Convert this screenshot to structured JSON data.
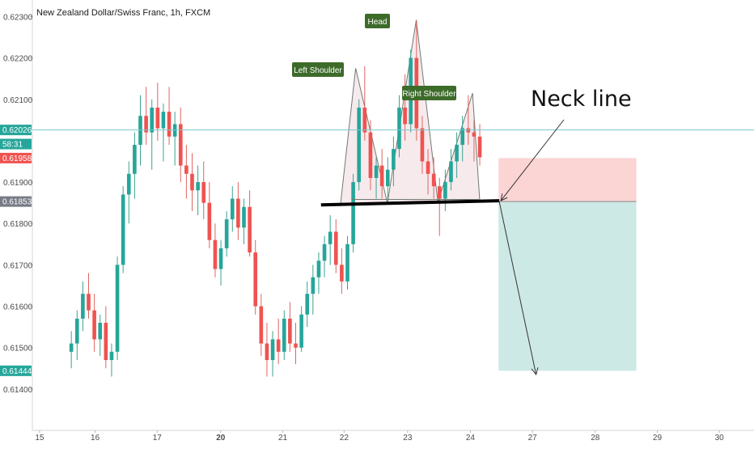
{
  "header": {
    "title": "New Zealand Dollar/Swiss Franc, 1h, FXCM"
  },
  "annotations": {
    "head": "Head",
    "left_shoulder": "Left Shoulder",
    "right_shoulder": "Right Shoulder",
    "neck_line": "Neck line"
  },
  "price_badges": [
    {
      "text": "0.62026",
      "value": 0.62026,
      "color": "#26a69a"
    },
    {
      "text": "58:31",
      "value": 0.61992,
      "color": "#26a69a"
    },
    {
      "text": "0.61958",
      "value": 0.61958,
      "color": "#ef5350"
    },
    {
      "text": "0.61853",
      "value": 0.61853,
      "color": "#787b86"
    },
    {
      "text": "0.61444",
      "value": 0.61444,
      "color": "#26a69a"
    }
  ],
  "chart_data": {
    "type": "candlestick",
    "y_ticks": [
      "0.62300",
      "0.62200",
      "0.62100",
      "0.61900",
      "0.61800",
      "0.61700",
      "0.61600",
      "0.61500",
      "0.61400"
    ],
    "x_ticks": [
      "15",
      "16",
      "17",
      "20",
      "21",
      "22",
      "23",
      "24",
      "27",
      "28",
      "29",
      "30"
    ],
    "x_range": [
      0,
      100
    ],
    "y_range": [
      0.613,
      0.6234
    ],
    "grid": false,
    "colors": {
      "up": "#26a69a",
      "down": "#ef5350",
      "wick_up": "#3aa390",
      "wick_down": "#e0645f"
    },
    "candles": [
      [
        0.6149,
        0.6154,
        0.6145,
        0.6151
      ],
      [
        0.6151,
        0.6159,
        0.6147,
        0.6157
      ],
      [
        0.6157,
        0.6166,
        0.6154,
        0.6163
      ],
      [
        0.6163,
        0.6168,
        0.6157,
        0.6159
      ],
      [
        0.6159,
        0.6163,
        0.6149,
        0.6152
      ],
      [
        0.6152,
        0.6158,
        0.6148,
        0.6156
      ],
      [
        0.6156,
        0.616,
        0.6145,
        0.6147
      ],
      [
        0.6147,
        0.6151,
        0.6143,
        0.6149
      ],
      [
        0.6149,
        0.6172,
        0.6147,
        0.617
      ],
      [
        0.617,
        0.6189,
        0.6168,
        0.6187
      ],
      [
        0.6187,
        0.6195,
        0.618,
        0.6192
      ],
      [
        0.6192,
        0.6202,
        0.6186,
        0.6199
      ],
      [
        0.6199,
        0.6211,
        0.6194,
        0.6206
      ],
      [
        0.6206,
        0.6213,
        0.6199,
        0.6202
      ],
      [
        0.6202,
        0.621,
        0.6193,
        0.6208
      ],
      [
        0.6208,
        0.6214,
        0.62,
        0.6203
      ],
      [
        0.6203,
        0.6209,
        0.6195,
        0.6207
      ],
      [
        0.6207,
        0.6213,
        0.6199,
        0.6201
      ],
      [
        0.6201,
        0.6207,
        0.6194,
        0.6204
      ],
      [
        0.6204,
        0.6208,
        0.619,
        0.6194
      ],
      [
        0.6194,
        0.6199,
        0.6186,
        0.6192
      ],
      [
        0.6192,
        0.6197,
        0.6183,
        0.6188
      ],
      [
        0.6188,
        0.6194,
        0.6182,
        0.619
      ],
      [
        0.619,
        0.6195,
        0.6181,
        0.6185
      ],
      [
        0.6185,
        0.619,
        0.6174,
        0.6176
      ],
      [
        0.6176,
        0.618,
        0.6167,
        0.6169
      ],
      [
        0.6169,
        0.6176,
        0.6165,
        0.6174
      ],
      [
        0.6174,
        0.6183,
        0.6172,
        0.6181
      ],
      [
        0.6181,
        0.6189,
        0.6178,
        0.6186
      ],
      [
        0.6186,
        0.619,
        0.6176,
        0.6179
      ],
      [
        0.6179,
        0.6186,
        0.6175,
        0.6184
      ],
      [
        0.6184,
        0.6188,
        0.6172,
        0.6173
      ],
      [
        0.6173,
        0.6176,
        0.6158,
        0.616
      ],
      [
        0.616,
        0.6163,
        0.6148,
        0.6151
      ],
      [
        0.6151,
        0.6156,
        0.6143,
        0.6147
      ],
      [
        0.6147,
        0.6154,
        0.6143,
        0.6152
      ],
      [
        0.6152,
        0.6157,
        0.6146,
        0.6149
      ],
      [
        0.6149,
        0.6159,
        0.6147,
        0.6157
      ],
      [
        0.6157,
        0.6161,
        0.6149,
        0.6151
      ],
      [
        0.6151,
        0.6156,
        0.6146,
        0.615
      ],
      [
        0.615,
        0.616,
        0.6149,
        0.6158
      ],
      [
        0.6158,
        0.6166,
        0.6155,
        0.6163
      ],
      [
        0.6163,
        0.617,
        0.6158,
        0.6167
      ],
      [
        0.6167,
        0.6173,
        0.6163,
        0.6171
      ],
      [
        0.6171,
        0.6177,
        0.6167,
        0.6175
      ],
      [
        0.6175,
        0.6182,
        0.617,
        0.6178
      ],
      [
        0.6178,
        0.6181,
        0.6168,
        0.617
      ],
      [
        0.617,
        0.6174,
        0.6163,
        0.6166
      ],
      [
        0.6166,
        0.6177,
        0.6164,
        0.6175
      ],
      [
        0.6175,
        0.6192,
        0.6173,
        0.619
      ],
      [
        0.619,
        0.621,
        0.6188,
        0.6208
      ],
      [
        0.6208,
        0.6218,
        0.62,
        0.6202
      ],
      [
        0.6202,
        0.6205,
        0.6188,
        0.6191
      ],
      [
        0.6191,
        0.6196,
        0.6186,
        0.6194
      ],
      [
        0.6194,
        0.6198,
        0.6186,
        0.6189
      ],
      [
        0.6189,
        0.6196,
        0.6185,
        0.6193
      ],
      [
        0.6193,
        0.6201,
        0.6189,
        0.6198
      ],
      [
        0.6198,
        0.6211,
        0.6196,
        0.6208
      ],
      [
        0.6208,
        0.6216,
        0.62,
        0.6204
      ],
      [
        0.6204,
        0.6222,
        0.6202,
        0.622
      ],
      [
        0.622,
        0.6229,
        0.62,
        0.6203
      ],
      [
        0.6203,
        0.6206,
        0.6192,
        0.6195
      ],
      [
        0.6195,
        0.6198,
        0.6187,
        0.6192
      ],
      [
        0.6192,
        0.6196,
        0.6186,
        0.6189
      ],
      [
        0.6189,
        0.6191,
        0.6177,
        0.6186
      ],
      [
        0.6186,
        0.6193,
        0.6183,
        0.619
      ],
      [
        0.619,
        0.6198,
        0.6188,
        0.6195
      ],
      [
        0.6195,
        0.6202,
        0.6191,
        0.6199
      ],
      [
        0.6199,
        0.6206,
        0.6195,
        0.6203
      ],
      [
        0.6203,
        0.6211,
        0.6199,
        0.6202
      ],
      [
        0.6202,
        0.6205,
        0.6195,
        0.6201
      ],
      [
        0.6201,
        0.6204,
        0.6194,
        0.6196
      ]
    ],
    "pattern_points": [
      {
        "label": "Left Shoulder",
        "x": 44.8,
        "y": 0.62175
      },
      {
        "label": "Head",
        "x": 53.2,
        "y": 0.62292
      },
      {
        "label": "Right Shoulder",
        "x": 61.0,
        "y": 0.62115
      }
    ],
    "neckline": {
      "label": "Neck line",
      "x_start": 40.0,
      "x_end": 64.7,
      "y_start": 0.61845,
      "y_end": 0.61855
    },
    "current_price": 0.62026,
    "risk_zone": {
      "x_start": 64.6,
      "x_end": 83.7,
      "y_top": 0.61958,
      "y_bottom": 0.61853
    },
    "reward_zone": {
      "x_start": 64.6,
      "x_end": 83.7,
      "y_top": 0.61853,
      "y_bottom": 0.61444
    },
    "projection": {
      "from_x": 64.7,
      "from_y": 0.61853,
      "to_x": 69.8,
      "to_y": 0.61435
    }
  }
}
